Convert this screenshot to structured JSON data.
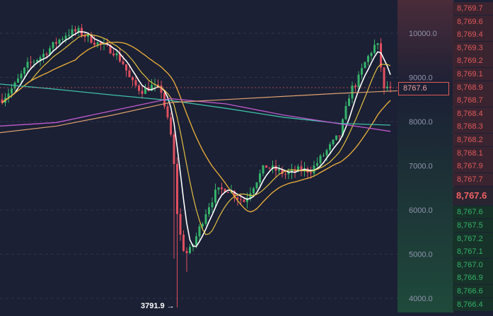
{
  "chart_data": {
    "type": "candlestick",
    "y_ticks": [
      "10000.0",
      "9000.0",
      "8000.0",
      "7000.0",
      "6000.0",
      "5000.0",
      "4000.0"
    ],
    "low_label": "3791.9 →",
    "current_price": "8767.6",
    "colors": {
      "up": "#35b36a",
      "down": "#e04f5f",
      "ma_fast": "#ffffff",
      "ma_mid": "#e4c040",
      "ma_slow": "#f1b23a",
      "ma_long_1": "#3fbfaa",
      "ma_long_2": "#c25ad0",
      "ma_long_3": "#e0a070"
    }
  },
  "order_book": {
    "asks": [
      "8,769.7",
      "8,769.6",
      "8,769.4",
      "8,769.3",
      "8,769.2",
      "8,769.1",
      "8,768.9",
      "8,768.7",
      "8,768.4",
      "8,768.3",
      "8,768.2",
      "8,768.1",
      "8,767.9",
      "8,767.7"
    ],
    "last": "8,767.6",
    "bids": [
      "8,767.6",
      "8,767.5",
      "8,767.2",
      "8,767.1",
      "8,767.0",
      "8,766.9",
      "8,766.6",
      "8,766.4"
    ]
  }
}
